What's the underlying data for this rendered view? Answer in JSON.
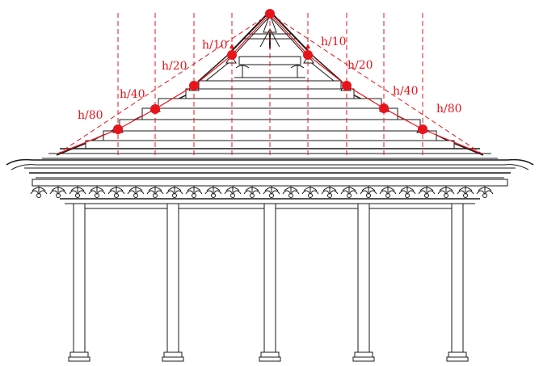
{
  "colors": {
    "annotation": "#e8141c",
    "drawing": "#1a1a1a",
    "background": "#ffffff"
  },
  "labels": {
    "left_h10": "h/10",
    "left_h20": "h/20",
    "left_h40": "h/40",
    "left_h80": "h/80",
    "right_h10": "h/10",
    "right_h20": "h/20",
    "right_h40": "h/40",
    "right_h80": "h/80"
  }
}
